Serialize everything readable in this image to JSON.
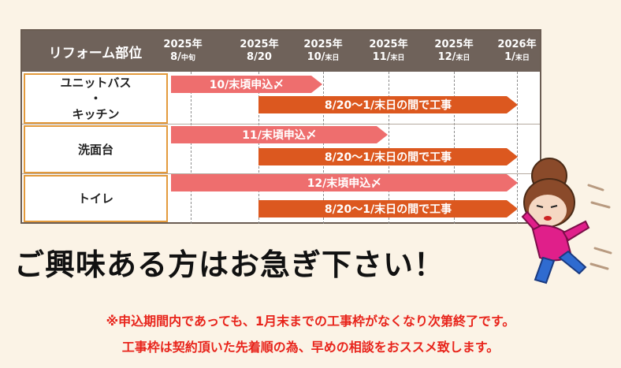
{
  "table": {
    "header_label": "リフォーム部位",
    "dates": [
      {
        "year": "2025年",
        "md": "8/",
        "sub": "中旬"
      },
      {
        "year": "2025年",
        "md": "8/20",
        "sub": ""
      },
      {
        "year": "2025年",
        "md": "10/",
        "sub": "末日"
      },
      {
        "year": "2025年",
        "md": "11/",
        "sub": "末日"
      },
      {
        "year": "2025年",
        "md": "12/",
        "sub": "末日"
      },
      {
        "year": "2026年",
        "md": "1/",
        "sub": "末日"
      }
    ],
    "rows": [
      {
        "label_lines": [
          "ユニットバス",
          "・",
          "キッチン"
        ],
        "deadline": "10/末頃申込〆",
        "work": "8/20〜1/末日の間で工事"
      },
      {
        "label_lines": [
          "洗面台"
        ],
        "deadline": "11/末頃申込〆",
        "work": "8/20〜1/末日の間で工事"
      },
      {
        "label_lines": [
          "トイレ"
        ],
        "deadline": "12/末頃申込〆",
        "work": "8/20〜1/末日の間で工事"
      }
    ]
  },
  "headline": "ご興味ある方はお急ぎ下さい！",
  "notes": [
    "※申込期間内であっても、1月末までの工事枠がなくなり次第終了です。",
    "工事枠は契約頂いた先着順の為、早めの相談をおススメ致します。"
  ],
  "colors": {
    "header_bg": "#6f625a",
    "deadline_arrow": "#ee6e6e",
    "work_arrow": "#dc581f",
    "row_border": "#e39a3c",
    "note_text": "#e8241b",
    "background": "#fbf3e6"
  },
  "illustration": "running-woman-illustration"
}
